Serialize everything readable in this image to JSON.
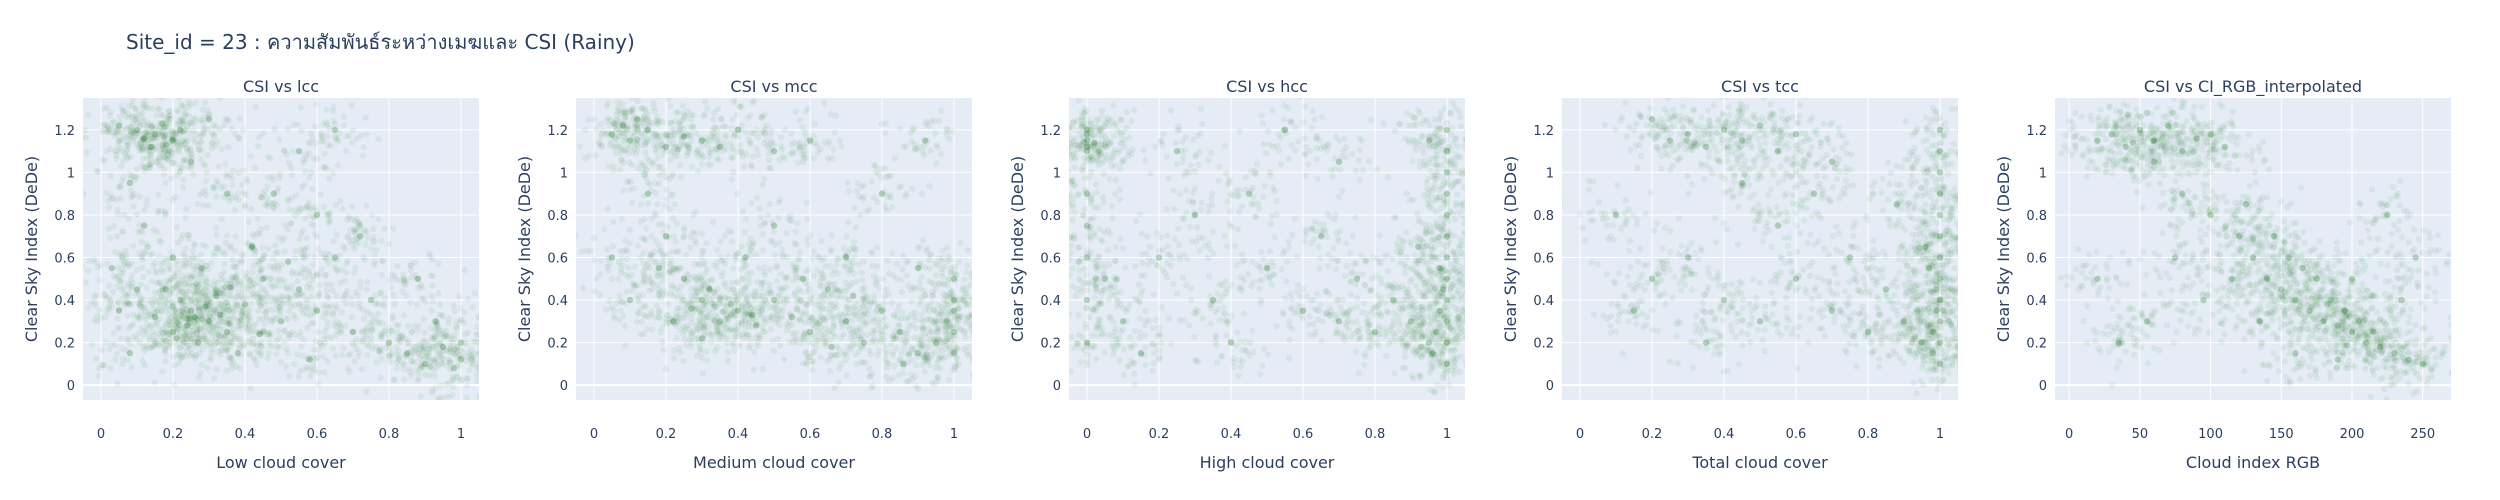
{
  "figure": {
    "title": "Site_id = 23 : ความสัมพันธ์ระหว่างเมฆและ CSI (Rainy)",
    "plot_bg": "#E5ECF6",
    "grid_color": "#FFFFFF",
    "text_color": "#2a3f5f",
    "marker_color": "#006400",
    "marker_opacity": 0.06
  },
  "chart_data": [
    {
      "type": "scatter",
      "title": "CSI vs lcc",
      "xlabel": "Low cloud cover",
      "ylabel": "Clear Sky Index (DeDe)",
      "xlim": [
        -0.05,
        1.05
      ],
      "ylim": [
        -0.07,
        1.35
      ],
      "xticks": [
        0,
        0.2,
        0.4,
        0.6,
        0.8,
        1
      ],
      "xtick_labels": [
        "0",
        "0.2",
        "0.4",
        "0.6",
        "0.8",
        "1"
      ],
      "yticks": [
        0,
        0.2,
        0.4,
        0.6,
        0.8,
        1,
        1.2
      ],
      "ytick_labels": [
        "0",
        "0.2",
        "0.4",
        "0.6",
        "0.8",
        "1",
        "1.2"
      ],
      "points": [
        [
          0.12,
          1.16
        ],
        [
          0.15,
          1.18
        ],
        [
          0.18,
          1.13
        ],
        [
          0.2,
          1.15
        ],
        [
          0.1,
          1.2
        ],
        [
          0.22,
          1.2
        ],
        [
          0.14,
          1.12
        ],
        [
          0.17,
          1.23
        ],
        [
          0.3,
          1.25
        ],
        [
          0.05,
          1.22
        ],
        [
          0.25,
          1.05
        ],
        [
          0.08,
          0.95
        ],
        [
          0.35,
          0.9
        ],
        [
          0.12,
          0.75
        ],
        [
          0.2,
          0.6
        ],
        [
          0.28,
          0.55
        ],
        [
          0.18,
          0.45
        ],
        [
          0.22,
          0.4
        ],
        [
          0.25,
          0.35
        ],
        [
          0.3,
          0.3
        ],
        [
          0.32,
          0.42
        ],
        [
          0.15,
          0.32
        ],
        [
          0.4,
          0.38
        ],
        [
          0.35,
          0.25
        ],
        [
          0.27,
          0.2
        ],
        [
          0.2,
          0.25
        ],
        [
          0.45,
          0.5
        ],
        [
          0.5,
          0.3
        ],
        [
          0.55,
          0.45
        ],
        [
          0.6,
          0.35
        ],
        [
          0.42,
          0.65
        ],
        [
          0.38,
          0.15
        ],
        [
          0.65,
          0.6
        ],
        [
          0.7,
          0.25
        ],
        [
          0.75,
          0.4
        ],
        [
          0.8,
          0.2
        ],
        [
          0.85,
          0.15
        ],
        [
          0.9,
          0.1
        ],
        [
          0.95,
          0.18
        ],
        [
          1.0,
          0.12
        ],
        [
          1.0,
          0.2
        ],
        [
          0.98,
          0.08
        ],
        [
          0.6,
          0.8
        ],
        [
          0.48,
          0.9
        ],
        [
          0.55,
          1.1
        ],
        [
          0.65,
          1.2
        ],
        [
          0.05,
          0.35
        ],
        [
          0.03,
          0.55
        ],
        [
          0.08,
          0.15
        ],
        [
          0.1,
          0.45
        ],
        [
          0.26,
          0.32
        ],
        [
          0.24,
          0.28
        ],
        [
          0.29,
          0.37
        ],
        [
          0.33,
          0.33
        ],
        [
          0.21,
          0.22
        ],
        [
          0.36,
          0.46
        ],
        [
          0.44,
          0.24
        ],
        [
          0.52,
          0.58
        ],
        [
          0.58,
          0.12
        ],
        [
          0.72,
          0.7
        ],
        [
          0.88,
          0.5
        ],
        [
          0.93,
          0.3
        ]
      ]
    },
    {
      "type": "scatter",
      "title": "CSI vs mcc",
      "xlabel": "Medium cloud cover",
      "ylabel": "Clear Sky Index (DeDe)",
      "xlim": [
        -0.05,
        1.05
      ],
      "ylim": [
        -0.07,
        1.35
      ],
      "xticks": [
        0,
        0.2,
        0.4,
        0.6,
        0.8,
        1
      ],
      "xtick_labels": [
        "0",
        "0.2",
        "0.4",
        "0.6",
        "0.8",
        "1"
      ],
      "yticks": [
        0,
        0.2,
        0.4,
        0.6,
        0.8,
        1,
        1.2
      ],
      "ytick_labels": [
        "0",
        "0.2",
        "0.4",
        "0.6",
        "0.8",
        "1",
        "1.2"
      ],
      "points": [
        [
          0.05,
          1.18
        ],
        [
          0.1,
          1.15
        ],
        [
          0.15,
          1.2
        ],
        [
          0.2,
          1.12
        ],
        [
          0.08,
          1.22
        ],
        [
          0.25,
          1.17
        ],
        [
          0.3,
          1.15
        ],
        [
          0.35,
          1.12
        ],
        [
          0.12,
          1.25
        ],
        [
          0.4,
          1.2
        ],
        [
          0.5,
          1.1
        ],
        [
          0.6,
          1.15
        ],
        [
          0.15,
          0.9
        ],
        [
          0.2,
          0.7
        ],
        [
          0.25,
          0.5
        ],
        [
          0.3,
          0.4
        ],
        [
          0.35,
          0.3
        ],
        [
          0.4,
          0.35
        ],
        [
          0.45,
          0.28
        ],
        [
          0.5,
          0.4
        ],
        [
          0.55,
          0.32
        ],
        [
          0.3,
          0.22
        ],
        [
          0.22,
          0.3
        ],
        [
          0.6,
          0.25
        ],
        [
          0.65,
          0.45
        ],
        [
          0.7,
          0.3
        ],
        [
          0.75,
          0.2
        ],
        [
          0.8,
          0.35
        ],
        [
          0.85,
          0.25
        ],
        [
          0.9,
          0.15
        ],
        [
          0.95,
          0.2
        ],
        [
          1.0,
          0.35
        ],
        [
          1.0,
          0.4
        ],
        [
          1.0,
          0.25
        ],
        [
          1.0,
          0.15
        ],
        [
          1.0,
          0.5
        ],
        [
          0.98,
          0.3
        ],
        [
          0.42,
          0.6
        ],
        [
          0.5,
          0.75
        ],
        [
          0.7,
          0.6
        ],
        [
          0.8,
          0.9
        ],
        [
          0.9,
          0.55
        ],
        [
          0.1,
          0.4
        ],
        [
          0.05,
          0.6
        ],
        [
          0.32,
          0.45
        ],
        [
          0.38,
          0.38
        ],
        [
          0.44,
          0.33
        ],
        [
          0.27,
          0.36
        ],
        [
          0.58,
          0.5
        ],
        [
          0.66,
          0.18
        ],
        [
          0.72,
          0.42
        ],
        [
          0.86,
          0.1
        ],
        [
          0.18,
          0.55
        ],
        [
          0.92,
          1.15
        ]
      ]
    },
    {
      "type": "scatter",
      "title": "CSI vs hcc",
      "xlabel": "High cloud cover",
      "ylabel": "Clear Sky Index (DeDe)",
      "xlim": [
        -0.05,
        1.05
      ],
      "ylim": [
        -0.07,
        1.35
      ],
      "xticks": [
        0,
        0.2,
        0.4,
        0.6,
        0.8,
        1
      ],
      "xtick_labels": [
        "0",
        "0.2",
        "0.4",
        "0.6",
        "0.8",
        "1"
      ],
      "yticks": [
        0,
        0.2,
        0.4,
        0.6,
        0.8,
        1,
        1.2
      ],
      "ytick_labels": [
        "0",
        "0.2",
        "0.4",
        "0.6",
        "0.8",
        "1",
        "1.2"
      ],
      "points": [
        [
          0.0,
          1.15
        ],
        [
          0.0,
          1.12
        ],
        [
          0.0,
          1.18
        ],
        [
          0.0,
          1.2
        ],
        [
          0.0,
          1.1
        ],
        [
          0.02,
          1.14
        ],
        [
          0.0,
          0.9
        ],
        [
          0.0,
          0.6
        ],
        [
          0.0,
          0.4
        ],
        [
          0.0,
          0.2
        ],
        [
          0.0,
          0.75
        ],
        [
          0.05,
          0.5
        ],
        [
          0.1,
          0.3
        ],
        [
          0.2,
          0.6
        ],
        [
          0.3,
          0.8
        ],
        [
          0.35,
          0.4
        ],
        [
          0.4,
          0.2
        ],
        [
          0.5,
          0.55
        ],
        [
          0.55,
          1.2
        ],
        [
          0.6,
          0.35
        ],
        [
          0.65,
          0.7
        ],
        [
          0.7,
          0.3
        ],
        [
          0.75,
          0.5
        ],
        [
          0.8,
          0.25
        ],
        [
          0.85,
          0.4
        ],
        [
          0.9,
          0.3
        ],
        [
          0.95,
          0.2
        ],
        [
          1.0,
          0.1
        ],
        [
          1.0,
          0.2
        ],
        [
          1.0,
          0.3
        ],
        [
          1.0,
          0.4
        ],
        [
          1.0,
          0.5
        ],
        [
          1.0,
          0.6
        ],
        [
          1.0,
          0.7
        ],
        [
          1.0,
          0.8
        ],
        [
          1.0,
          0.9
        ],
        [
          1.0,
          1.0
        ],
        [
          1.0,
          1.1
        ],
        [
          1.0,
          1.2
        ],
        [
          0.98,
          0.35
        ],
        [
          0.97,
          0.25
        ],
        [
          0.99,
          0.45
        ],
        [
          0.96,
          0.15
        ],
        [
          0.98,
          0.55
        ],
        [
          0.95,
          1.15
        ],
        [
          0.92,
          0.65
        ],
        [
          0.25,
          1.1
        ],
        [
          0.45,
          0.9
        ],
        [
          0.15,
          0.15
        ],
        [
          0.7,
          1.05
        ]
      ]
    },
    {
      "type": "scatter",
      "title": "CSI vs tcc",
      "xlabel": "Total cloud cover",
      "ylabel": "Clear Sky Index (DeDe)",
      "xlim": [
        -0.05,
        1.05
      ],
      "ylim": [
        -0.07,
        1.35
      ],
      "xticks": [
        0,
        0.2,
        0.4,
        0.6,
        0.8,
        1
      ],
      "xtick_labels": [
        "0",
        "0.2",
        "0.4",
        "0.6",
        "0.8",
        "1"
      ],
      "yticks": [
        0,
        0.2,
        0.4,
        0.6,
        0.8,
        1,
        1.2
      ],
      "ytick_labels": [
        "0",
        "0.2",
        "0.4",
        "0.6",
        "0.8",
        "1",
        "1.2"
      ],
      "points": [
        [
          0.25,
          1.15
        ],
        [
          0.3,
          1.18
        ],
        [
          0.35,
          1.12
        ],
        [
          0.4,
          1.2
        ],
        [
          0.45,
          1.15
        ],
        [
          0.5,
          1.22
        ],
        [
          0.55,
          1.1
        ],
        [
          0.2,
          1.25
        ],
        [
          0.6,
          1.18
        ],
        [
          0.1,
          0.8
        ],
        [
          0.2,
          0.5
        ],
        [
          0.3,
          0.6
        ],
        [
          0.4,
          0.4
        ],
        [
          0.5,
          0.3
        ],
        [
          0.6,
          0.5
        ],
        [
          0.7,
          0.35
        ],
        [
          0.75,
          0.6
        ],
        [
          0.8,
          0.25
        ],
        [
          0.85,
          0.45
        ],
        [
          0.9,
          0.3
        ],
        [
          0.95,
          0.2
        ],
        [
          1.0,
          0.1
        ],
        [
          1.0,
          0.2
        ],
        [
          1.0,
          0.3
        ],
        [
          1.0,
          0.4
        ],
        [
          1.0,
          0.5
        ],
        [
          1.0,
          0.6
        ],
        [
          1.0,
          0.7
        ],
        [
          1.0,
          0.8
        ],
        [
          1.0,
          0.9
        ],
        [
          1.0,
          1.0
        ],
        [
          1.0,
          1.1
        ],
        [
          1.0,
          1.2
        ],
        [
          0.99,
          0.35
        ],
        [
          0.98,
          0.25
        ],
        [
          0.99,
          0.45
        ],
        [
          0.97,
          0.55
        ],
        [
          0.98,
          0.15
        ],
        [
          0.96,
          0.65
        ],
        [
          0.65,
          0.9
        ],
        [
          0.55,
          0.75
        ],
        [
          0.45,
          0.95
        ],
        [
          0.35,
          0.2
        ],
        [
          0.15,
          0.35
        ],
        [
          0.7,
          1.05
        ],
        [
          0.88,
          0.85
        ]
      ]
    },
    {
      "type": "scatter",
      "title": "CSI vs CI_RGB_interpolated",
      "xlabel": "Cloud index RGB",
      "ylabel": "Clear Sky Index (DeDe)",
      "xlim": [
        -10,
        270
      ],
      "ylim": [
        -0.07,
        1.35
      ],
      "xticks": [
        0,
        50,
        100,
        150,
        200,
        250
      ],
      "xtick_labels": [
        "0",
        "50",
        "100",
        "150",
        "200",
        "250"
      ],
      "yticks": [
        0,
        0.2,
        0.4,
        0.6,
        0.8,
        1,
        1.2
      ],
      "ytick_labels": [
        "0",
        "0.2",
        "0.4",
        "0.6",
        "0.8",
        "1",
        "1.2"
      ],
      "points": [
        [
          20,
          1.15
        ],
        [
          30,
          1.18
        ],
        [
          40,
          1.12
        ],
        [
          50,
          1.2
        ],
        [
          60,
          1.15
        ],
        [
          45,
          1.14
        ],
        [
          70,
          1.22
        ],
        [
          80,
          1.1
        ],
        [
          90,
          1.16
        ],
        [
          100,
          1.18
        ],
        [
          110,
          1.12
        ],
        [
          60,
          1.05
        ],
        [
          80,
          0.9
        ],
        [
          100,
          0.8
        ],
        [
          120,
          0.7
        ],
        [
          130,
          0.6
        ],
        [
          140,
          0.5
        ],
        [
          150,
          0.45
        ],
        [
          160,
          0.4
        ],
        [
          170,
          0.35
        ],
        [
          180,
          0.3
        ],
        [
          190,
          0.28
        ],
        [
          200,
          0.25
        ],
        [
          210,
          0.2
        ],
        [
          220,
          0.18
        ],
        [
          230,
          0.15
        ],
        [
          240,
          0.12
        ],
        [
          250,
          0.1
        ],
        [
          175,
          0.5
        ],
        [
          185,
          0.4
        ],
        [
          195,
          0.35
        ],
        [
          165,
          0.55
        ],
        [
          205,
          0.3
        ],
        [
          215,
          0.25
        ],
        [
          155,
          0.6
        ],
        [
          145,
          0.7
        ],
        [
          125,
          0.85
        ],
        [
          135,
          0.3
        ],
        [
          115,
          0.5
        ],
        [
          95,
          0.4
        ],
        [
          75,
          0.6
        ],
        [
          55,
          0.3
        ],
        [
          35,
          0.2
        ],
        [
          20,
          0.5
        ],
        [
          235,
          0.4
        ],
        [
          245,
          0.6
        ],
        [
          225,
          0.8
        ],
        [
          160,
          0.15
        ],
        [
          190,
          0.12
        ],
        [
          200,
          0.5
        ]
      ]
    }
  ]
}
